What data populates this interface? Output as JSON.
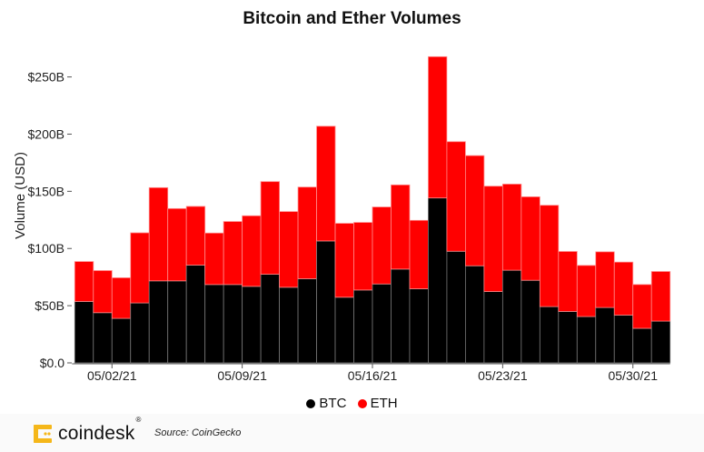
{
  "chart_data": {
    "type": "bar",
    "stacked": true,
    "title": "Bitcoin and Ether Volumes",
    "xlabel": "",
    "ylabel": "Volume (USD)",
    "ylim": [
      0,
      270
    ],
    "y_unit": "billion USD",
    "yticks": [
      0,
      50,
      100,
      150,
      200,
      250
    ],
    "ytick_labels": [
      "$0.0",
      "$50B",
      "$100B",
      "$150B",
      "$200B",
      "$250B"
    ],
    "xticks": [
      {
        "date": "05/02/21",
        "label": "05/02/21"
      },
      {
        "date": "05/09/21",
        "label": "05/09/21"
      },
      {
        "date": "05/16/21",
        "label": "05/16/21"
      },
      {
        "date": "05/23/21",
        "label": "05/23/21"
      },
      {
        "date": "05/30/21",
        "label": "05/30/21"
      }
    ],
    "grid": false,
    "legend_position": "bottom-center",
    "categories": [
      "04/30/21",
      "05/01/21",
      "05/02/21",
      "05/03/21",
      "05/04/21",
      "05/05/21",
      "05/06/21",
      "05/07/21",
      "05/08/21",
      "05/09/21",
      "05/10/21",
      "05/11/21",
      "05/12/21",
      "05/13/21",
      "05/14/21",
      "05/15/21",
      "05/16/21",
      "05/17/21",
      "05/18/21",
      "05/19/21",
      "05/20/21",
      "05/21/21",
      "05/22/21",
      "05/23/21",
      "05/24/21",
      "05/25/21",
      "05/26/21",
      "05/27/21",
      "05/28/21",
      "05/29/21",
      "05/30/21",
      "05/31/21"
    ],
    "series": [
      {
        "name": "BTC",
        "color": "#000000",
        "values": [
          53.7,
          43.9,
          38.9,
          52.4,
          71.7,
          71.7,
          85.5,
          68.5,
          68.5,
          66.9,
          77.5,
          66.1,
          73.6,
          106.6,
          57.4,
          63.7,
          69.0,
          82.0,
          64.8,
          144.2,
          97.6,
          84.9,
          62.4,
          81.0,
          72.2,
          49.2,
          45.0,
          40.5,
          48.4,
          41.8,
          30.2,
          36.5
        ]
      },
      {
        "name": "ETH",
        "color": "#ff0000",
        "values": [
          34.9,
          36.8,
          35.5,
          61.3,
          81.5,
          63.2,
          51.3,
          45.0,
          55.1,
          61.7,
          81.0,
          66.2,
          80.1,
          100.3,
          64.6,
          59.1,
          67.3,
          73.6,
          59.8,
          123.5,
          95.8,
          96.3,
          92.1,
          75.3,
          73.0,
          88.6,
          52.4,
          44.7,
          48.7,
          46.3,
          38.3,
          43.4
        ]
      }
    ]
  },
  "legend": {
    "items": [
      {
        "label": "BTC",
        "color": "#000000"
      },
      {
        "label": "ETH",
        "color": "#ff0000"
      }
    ]
  },
  "footer": {
    "brand": "coindesk",
    "brand_mark": "®",
    "brand_color": "#f5b71a",
    "source": "Source: CoinGecko"
  }
}
